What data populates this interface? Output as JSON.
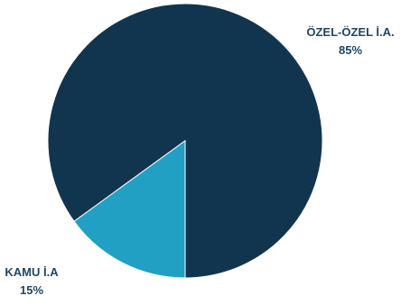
{
  "chart_data": {
    "type": "pie",
    "title": "",
    "slices": [
      {
        "label": "ÖZEL-ÖZEL İ.A.",
        "value": 85,
        "value_label": "85%",
        "color": "#12354f"
      },
      {
        "label": "KAMU İ.A",
        "value": 15,
        "value_label": "15%",
        "color": "#21a0c4"
      }
    ],
    "label_color": "#21475f"
  }
}
